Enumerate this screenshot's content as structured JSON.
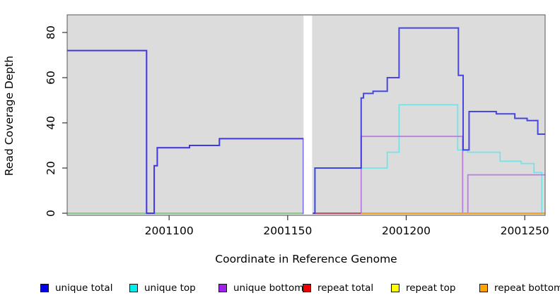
{
  "chart_data": {
    "type": "line",
    "subtype": "step-after-coverage",
    "title": "",
    "xlabel": "Coordinate in Reference Genome",
    "ylabel": "Read Coverage Depth",
    "x_ticks": [
      2001100,
      2001150,
      2001200,
      2001250
    ],
    "x_tick_labels": [
      "2001100",
      "2001150",
      "2001200",
      "2001250"
    ],
    "y_ticks": [
      0,
      20,
      40,
      60,
      80
    ],
    "y_tick_labels": [
      "0",
      "20",
      "40",
      "60",
      "80"
    ],
    "xlim": [
      2001057,
      2001258.6
    ],
    "ylim": [
      0,
      87.8
    ],
    "grid": false,
    "panel_bg": "#DCDCDC",
    "masked_region": {
      "x_start": 2001156.7,
      "x_end": 2001160.3,
      "color": "#FFFFFF"
    },
    "draw_order": [
      "repeat_top",
      "unique_top",
      "unique_bottom",
      "repeat_total",
      "repeat_bottom",
      "unique_total"
    ],
    "series": {
      "unique_total": {
        "label": "unique total",
        "legend_color": "#0000EE",
        "line_color": "#2D2DE1",
        "line_opacity": 0.85,
        "line_width": 2,
        "segments": [
          {
            "points": [
              [
                2001057,
                72
              ],
              [
                2001090.5,
                0
              ],
              [
                2001093.7,
                21
              ],
              [
                2001095,
                29
              ],
              [
                2001108.6,
                30
              ],
              [
                2001121.2,
                33
              ],
              [
                2001156.7,
                0
              ]
            ],
            "end": 2001157.0
          },
          {
            "points": [
              [
                2001160.6,
                0
              ],
              [
                2001161.5,
                20
              ],
              [
                2001181,
                51
              ],
              [
                2001182,
                53
              ],
              [
                2001186,
                54
              ],
              [
                2001192,
                60
              ],
              [
                2001197,
                82
              ],
              [
                2001222,
                61
              ],
              [
                2001224,
                28
              ],
              [
                2001226.5,
                45
              ],
              [
                2001238,
                44
              ],
              [
                2001245.8,
                42
              ],
              [
                2001251,
                41
              ],
              [
                2001255.5,
                35
              ]
            ],
            "end": 2001258.6
          }
        ]
      },
      "unique_top": {
        "label": "unique top",
        "legend_color": "#00EEEE",
        "line_color": "#74E3E9",
        "line_opacity": 1,
        "line_width": 1.8,
        "segments": [
          {
            "points": [
              [
                2001160.6,
                0
              ],
              [
                2001161.5,
                20
              ],
              [
                2001192,
                27
              ],
              [
                2001197,
                48
              ],
              [
                2001221.7,
                28
              ],
              [
                2001225.9,
                27
              ],
              [
                2001239.6,
                23
              ],
              [
                2001248.5,
                22
              ],
              [
                2001253.9,
                18
              ],
              [
                2001257.2,
                0
              ]
            ],
            "end": 2001258.6
          }
        ]
      },
      "unique_bottom": {
        "label": "unique bottom",
        "legend_color": "#A020F0",
        "line_color": "#BC7CE4",
        "line_opacity": 1,
        "line_width": 1.8,
        "segments": [
          {
            "points": [
              [
                2001057,
                72
              ],
              [
                2001090.5,
                0
              ],
              [
                2001093.7,
                21
              ],
              [
                2001095,
                29
              ],
              [
                2001108.6,
                30
              ],
              [
                2001121.2,
                33
              ],
              [
                2001156.7,
                0
              ]
            ],
            "end": 2001157.0
          },
          {
            "points": [
              [
                2001161,
                0
              ],
              [
                2001181,
                34
              ],
              [
                2001223.8,
                0
              ],
              [
                2001226,
                17
              ]
            ],
            "end": 2001258.6
          }
        ]
      },
      "repeat_total": {
        "label": "repeat total",
        "legend_color": "#EE0000",
        "line_color": "#BE4758",
        "line_opacity": 1,
        "line_width": 1.8,
        "segments": [
          {
            "points": [
              [
                2001160.6,
                0
              ]
            ],
            "end": 2001258.6
          }
        ]
      },
      "repeat_top": {
        "label": "repeat top",
        "legend_color": "#FFFF00",
        "line_color": "#7CC87C",
        "line_opacity": 1,
        "line_width": 1.8,
        "segments": [
          {
            "points": [
              [
                2001057,
                0
              ]
            ],
            "end": 2001157.0
          }
        ]
      },
      "repeat_bottom": {
        "label": "repeat bottom",
        "legend_color": "#FFA500",
        "line_color": "#FFA519",
        "line_opacity": 1,
        "line_width": 1.8,
        "segments": [
          {
            "points": [
              [
                2001181,
                0
              ]
            ],
            "end": 2001258.6
          }
        ]
      }
    },
    "legend": {
      "position": "bottom",
      "entries": [
        {
          "id": "unique_total",
          "label": "unique total"
        },
        {
          "id": "unique_top",
          "label": "unique top"
        },
        {
          "id": "unique_bottom",
          "label": "unique bottom"
        },
        {
          "id": "repeat_total",
          "label": "repeat total"
        },
        {
          "id": "repeat_top",
          "label": "repeat top"
        },
        {
          "id": "repeat_bottom",
          "label": "repeat bottom"
        }
      ]
    }
  }
}
